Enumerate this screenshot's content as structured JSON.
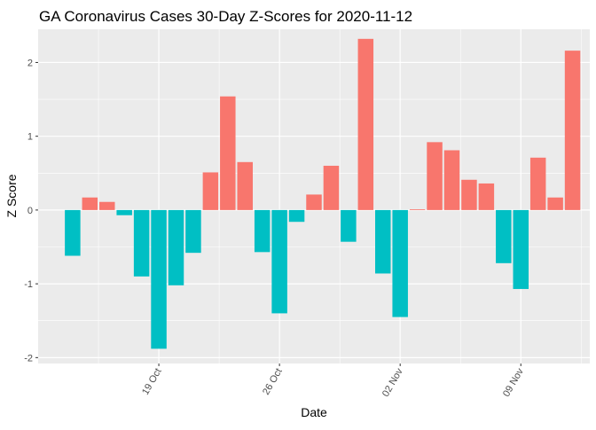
{
  "chart_data": {
    "type": "bar",
    "title": "GA Coronavirus Cases 30-Day Z-Scores for 2020-11-12",
    "xlabel": "Date",
    "ylabel": "Z Score",
    "ylim": [
      -2.08,
      2.45
    ],
    "y_ticks": [
      -2,
      -1,
      0,
      1,
      2
    ],
    "x_ticks": [
      {
        "label": "19 Oct",
        "date": "2020-10-19"
      },
      {
        "label": "26 Oct",
        "date": "2020-10-26"
      },
      {
        "label": "02 Nov",
        "date": "2020-11-02"
      },
      {
        "label": "09 Nov",
        "date": "2020-11-09"
      }
    ],
    "x_range": [
      "2020-10-12",
      "2020-11-13"
    ],
    "grid": true,
    "legend": "none",
    "colors": {
      "positive": "#F8766D",
      "negative": "#00BFC4",
      "panel": "#EBEBEB",
      "grid": "#FFFFFF"
    },
    "points": [
      {
        "date": "2020-10-14",
        "value": -0.62
      },
      {
        "date": "2020-10-15",
        "value": 0.17
      },
      {
        "date": "2020-10-16",
        "value": 0.11
      },
      {
        "date": "2020-10-17",
        "value": -0.07
      },
      {
        "date": "2020-10-18",
        "value": -0.9
      },
      {
        "date": "2020-10-19",
        "value": -1.88
      },
      {
        "date": "2020-10-20",
        "value": -1.02
      },
      {
        "date": "2020-10-21",
        "value": -0.58
      },
      {
        "date": "2020-10-22",
        "value": 0.51
      },
      {
        "date": "2020-10-23",
        "value": 1.54
      },
      {
        "date": "2020-10-24",
        "value": 0.65
      },
      {
        "date": "2020-10-25",
        "value": -0.57
      },
      {
        "date": "2020-10-26",
        "value": -1.4
      },
      {
        "date": "2020-10-27",
        "value": -0.16
      },
      {
        "date": "2020-10-28",
        "value": 0.21
      },
      {
        "date": "2020-10-29",
        "value": 0.6
      },
      {
        "date": "2020-10-30",
        "value": -0.43
      },
      {
        "date": "2020-10-31",
        "value": 2.32
      },
      {
        "date": "2020-11-01",
        "value": -0.86
      },
      {
        "date": "2020-11-02",
        "value": -1.45
      },
      {
        "date": "2020-11-03",
        "value": 0.01
      },
      {
        "date": "2020-11-04",
        "value": 0.92
      },
      {
        "date": "2020-11-05",
        "value": 0.81
      },
      {
        "date": "2020-11-06",
        "value": 0.41
      },
      {
        "date": "2020-11-07",
        "value": 0.36
      },
      {
        "date": "2020-11-08",
        "value": -0.72
      },
      {
        "date": "2020-11-09",
        "value": -1.07
      },
      {
        "date": "2020-11-10",
        "value": 0.71
      },
      {
        "date": "2020-11-11",
        "value": 0.17
      },
      {
        "date": "2020-11-12",
        "value": 2.16
      }
    ]
  }
}
